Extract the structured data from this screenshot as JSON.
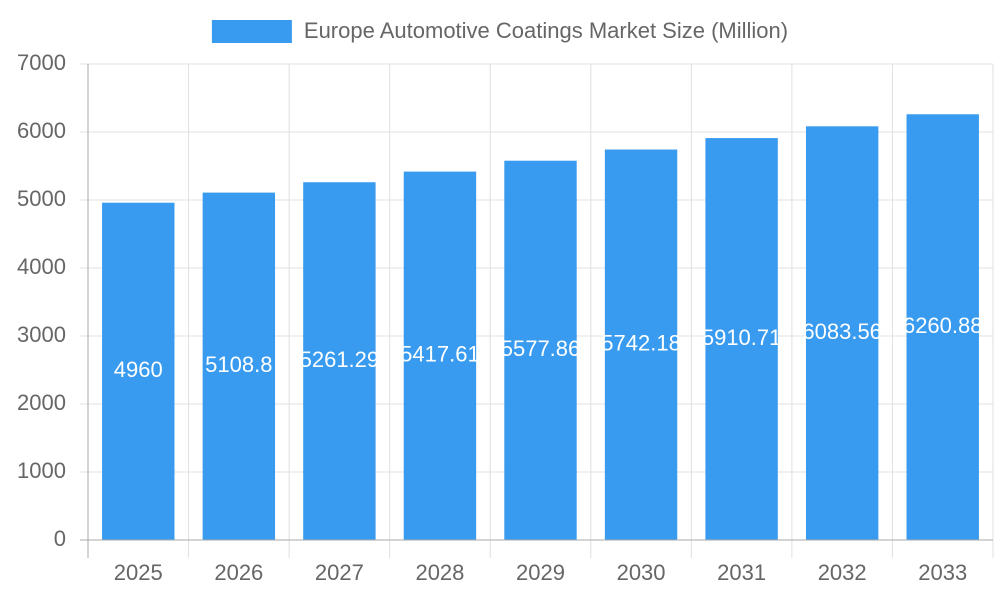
{
  "chart_data": {
    "type": "bar",
    "categories": [
      "2025",
      "2026",
      "2027",
      "2028",
      "2029",
      "2030",
      "2031",
      "2032",
      "2033"
    ],
    "series": [
      {
        "name": "Europe Automotive Coatings Market Size (Million)",
        "color": "#389bef",
        "values": [
          4960,
          5108.8,
          5261.29,
          5417.61,
          5577.86,
          5742.18,
          5910.71,
          6083.56,
          6260.88
        ]
      }
    ],
    "ylim": [
      0,
      7000
    ],
    "yticks": [
      0,
      1000,
      2000,
      3000,
      4000,
      5000,
      6000,
      7000
    ],
    "grid": true,
    "legend": "top"
  }
}
